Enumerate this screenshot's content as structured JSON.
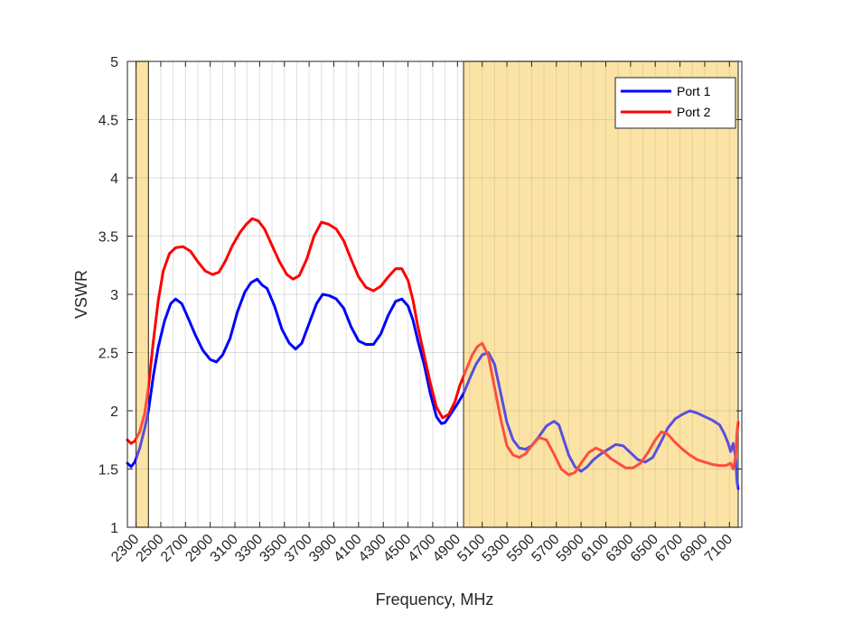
{
  "chart_data": {
    "type": "line",
    "title": "",
    "xlabel": "Frequency, MHz",
    "ylabel": "VSWR",
    "xlim": [
      2230,
      7200
    ],
    "ylim": [
      1,
      5
    ],
    "xticks": [
      2300,
      2500,
      2700,
      2900,
      3100,
      3300,
      3500,
      3700,
      3900,
      4100,
      4300,
      4500,
      4700,
      4900,
      5100,
      5300,
      5500,
      5700,
      5900,
      6100,
      6300,
      6500,
      6700,
      6900,
      7100
    ],
    "xticklabels": [
      "2300",
      "2500",
      "2700",
      "2900",
      "3100",
      "3300",
      "3500",
      "3700",
      "3900",
      "4100",
      "4300",
      "4500",
      "4700",
      "4900",
      "5100",
      "5300",
      "5500",
      "5700",
      "5900",
      "6100",
      "6300",
      "6500",
      "6700",
      "6900",
      "7100"
    ],
    "yticks": [
      1,
      1.5,
      2,
      2.5,
      3,
      3.5,
      4,
      4.5,
      5
    ],
    "yticklabels": [
      "1",
      "1.5",
      "2",
      "2.5",
      "3",
      "3.5",
      "4",
      "4.5",
      "5"
    ],
    "minor_xticks": [
      2400,
      2600,
      2800,
      3000,
      3200,
      3400,
      3600,
      3800,
      4000,
      4200,
      4400,
      4600,
      4800,
      5000,
      5200,
      5400,
      5600,
      5800,
      6000,
      6200,
      6400,
      6600,
      6800,
      7000
    ],
    "grid": true,
    "legend_position": "top-right",
    "shaded_bands": [
      {
        "x0": 2300,
        "x1": 2400,
        "color": "#fbe3a6"
      },
      {
        "x0": 4950,
        "x1": 7170,
        "color": "#fbe3a6"
      }
    ],
    "series": [
      {
        "name": "Port 1",
        "color": "#0000ff",
        "points": [
          [
            2230,
            1.55
          ],
          [
            2260,
            1.52
          ],
          [
            2290,
            1.56
          ],
          [
            2330,
            1.68
          ],
          [
            2370,
            1.85
          ],
          [
            2400,
            2.0
          ],
          [
            2440,
            2.3
          ],
          [
            2480,
            2.55
          ],
          [
            2530,
            2.77
          ],
          [
            2580,
            2.92
          ],
          [
            2620,
            2.96
          ],
          [
            2670,
            2.92
          ],
          [
            2720,
            2.8
          ],
          [
            2780,
            2.65
          ],
          [
            2840,
            2.52
          ],
          [
            2900,
            2.44
          ],
          [
            2950,
            2.42
          ],
          [
            3000,
            2.48
          ],
          [
            3060,
            2.62
          ],
          [
            3120,
            2.85
          ],
          [
            3180,
            3.02
          ],
          [
            3230,
            3.1
          ],
          [
            3280,
            3.13
          ],
          [
            3320,
            3.08
          ],
          [
            3360,
            3.05
          ],
          [
            3420,
            2.9
          ],
          [
            3480,
            2.7
          ],
          [
            3540,
            2.58
          ],
          [
            3590,
            2.53
          ],
          [
            3640,
            2.58
          ],
          [
            3700,
            2.75
          ],
          [
            3760,
            2.92
          ],
          [
            3810,
            3.0
          ],
          [
            3860,
            2.99
          ],
          [
            3920,
            2.96
          ],
          [
            3980,
            2.88
          ],
          [
            4040,
            2.72
          ],
          [
            4100,
            2.6
          ],
          [
            4160,
            2.57
          ],
          [
            4220,
            2.57
          ],
          [
            4280,
            2.66
          ],
          [
            4340,
            2.82
          ],
          [
            4400,
            2.94
          ],
          [
            4450,
            2.96
          ],
          [
            4500,
            2.9
          ],
          [
            4540,
            2.78
          ],
          [
            4580,
            2.6
          ],
          [
            4630,
            2.4
          ],
          [
            4680,
            2.15
          ],
          [
            4730,
            1.95
          ],
          [
            4770,
            1.89
          ],
          [
            4800,
            1.9
          ],
          [
            4850,
            1.98
          ],
          [
            4900,
            2.06
          ],
          [
            4950,
            2.15
          ],
          [
            5000,
            2.28
          ],
          [
            5050,
            2.4
          ],
          [
            5100,
            2.48
          ],
          [
            5150,
            2.5
          ],
          [
            5200,
            2.4
          ],
          [
            5250,
            2.15
          ],
          [
            5300,
            1.9
          ],
          [
            5350,
            1.75
          ],
          [
            5400,
            1.68
          ],
          [
            5450,
            1.67
          ],
          [
            5500,
            1.7
          ],
          [
            5560,
            1.78
          ],
          [
            5620,
            1.87
          ],
          [
            5680,
            1.91
          ],
          [
            5720,
            1.88
          ],
          [
            5760,
            1.75
          ],
          [
            5800,
            1.62
          ],
          [
            5850,
            1.52
          ],
          [
            5900,
            1.48
          ],
          [
            5950,
            1.52
          ],
          [
            6000,
            1.58
          ],
          [
            6060,
            1.63
          ],
          [
            6120,
            1.67
          ],
          [
            6180,
            1.71
          ],
          [
            6240,
            1.7
          ],
          [
            6300,
            1.64
          ],
          [
            6360,
            1.58
          ],
          [
            6420,
            1.56
          ],
          [
            6480,
            1.6
          ],
          [
            6540,
            1.72
          ],
          [
            6600,
            1.85
          ],
          [
            6660,
            1.93
          ],
          [
            6720,
            1.97
          ],
          [
            6780,
            2.0
          ],
          [
            6840,
            1.98
          ],
          [
            6900,
            1.95
          ],
          [
            6960,
            1.92
          ],
          [
            7020,
            1.88
          ],
          [
            7060,
            1.8
          ],
          [
            7090,
            1.72
          ],
          [
            7110,
            1.65
          ],
          [
            7130,
            1.72
          ],
          [
            7150,
            1.6
          ],
          [
            7160,
            1.4
          ],
          [
            7170,
            1.33
          ]
        ]
      },
      {
        "name": "Port 2",
        "color": "#ff0000",
        "points": [
          [
            2230,
            1.75
          ],
          [
            2260,
            1.72
          ],
          [
            2290,
            1.74
          ],
          [
            2330,
            1.82
          ],
          [
            2370,
            1.98
          ],
          [
            2400,
            2.2
          ],
          [
            2440,
            2.6
          ],
          [
            2480,
            2.95
          ],
          [
            2520,
            3.2
          ],
          [
            2570,
            3.35
          ],
          [
            2620,
            3.4
          ],
          [
            2680,
            3.41
          ],
          [
            2740,
            3.37
          ],
          [
            2800,
            3.28
          ],
          [
            2860,
            3.2
          ],
          [
            2920,
            3.17
          ],
          [
            2970,
            3.19
          ],
          [
            3020,
            3.28
          ],
          [
            3080,
            3.42
          ],
          [
            3140,
            3.53
          ],
          [
            3190,
            3.6
          ],
          [
            3240,
            3.65
          ],
          [
            3290,
            3.63
          ],
          [
            3340,
            3.56
          ],
          [
            3400,
            3.42
          ],
          [
            3460,
            3.28
          ],
          [
            3520,
            3.17
          ],
          [
            3570,
            3.13
          ],
          [
            3620,
            3.16
          ],
          [
            3680,
            3.3
          ],
          [
            3740,
            3.5
          ],
          [
            3800,
            3.62
          ],
          [
            3860,
            3.6
          ],
          [
            3920,
            3.56
          ],
          [
            3980,
            3.46
          ],
          [
            4040,
            3.3
          ],
          [
            4100,
            3.15
          ],
          [
            4160,
            3.06
          ],
          [
            4220,
            3.03
          ],
          [
            4280,
            3.07
          ],
          [
            4340,
            3.15
          ],
          [
            4400,
            3.22
          ],
          [
            4450,
            3.22
          ],
          [
            4500,
            3.12
          ],
          [
            4540,
            2.95
          ],
          [
            4580,
            2.72
          ],
          [
            4630,
            2.48
          ],
          [
            4680,
            2.24
          ],
          [
            4730,
            2.03
          ],
          [
            4780,
            1.94
          ],
          [
            4830,
            1.97
          ],
          [
            4880,
            2.08
          ],
          [
            4920,
            2.22
          ],
          [
            4970,
            2.35
          ],
          [
            5020,
            2.48
          ],
          [
            5060,
            2.55
          ],
          [
            5100,
            2.58
          ],
          [
            5150,
            2.47
          ],
          [
            5200,
            2.2
          ],
          [
            5250,
            1.93
          ],
          [
            5300,
            1.7
          ],
          [
            5350,
            1.62
          ],
          [
            5400,
            1.6
          ],
          [
            5450,
            1.63
          ],
          [
            5500,
            1.7
          ],
          [
            5560,
            1.77
          ],
          [
            5620,
            1.75
          ],
          [
            5680,
            1.63
          ],
          [
            5740,
            1.5
          ],
          [
            5800,
            1.45
          ],
          [
            5850,
            1.47
          ],
          [
            5900,
            1.55
          ],
          [
            5960,
            1.64
          ],
          [
            6020,
            1.68
          ],
          [
            6080,
            1.65
          ],
          [
            6140,
            1.59
          ],
          [
            6200,
            1.55
          ],
          [
            6260,
            1.51
          ],
          [
            6320,
            1.51
          ],
          [
            6380,
            1.55
          ],
          [
            6440,
            1.64
          ],
          [
            6500,
            1.75
          ],
          [
            6550,
            1.82
          ],
          [
            6600,
            1.8
          ],
          [
            6660,
            1.73
          ],
          [
            6720,
            1.67
          ],
          [
            6780,
            1.62
          ],
          [
            6840,
            1.58
          ],
          [
            6900,
            1.56
          ],
          [
            6960,
            1.54
          ],
          [
            7020,
            1.53
          ],
          [
            7070,
            1.53
          ],
          [
            7110,
            1.55
          ],
          [
            7130,
            1.5
          ],
          [
            7150,
            1.6
          ],
          [
            7160,
            1.8
          ],
          [
            7170,
            1.9
          ]
        ]
      }
    ]
  }
}
